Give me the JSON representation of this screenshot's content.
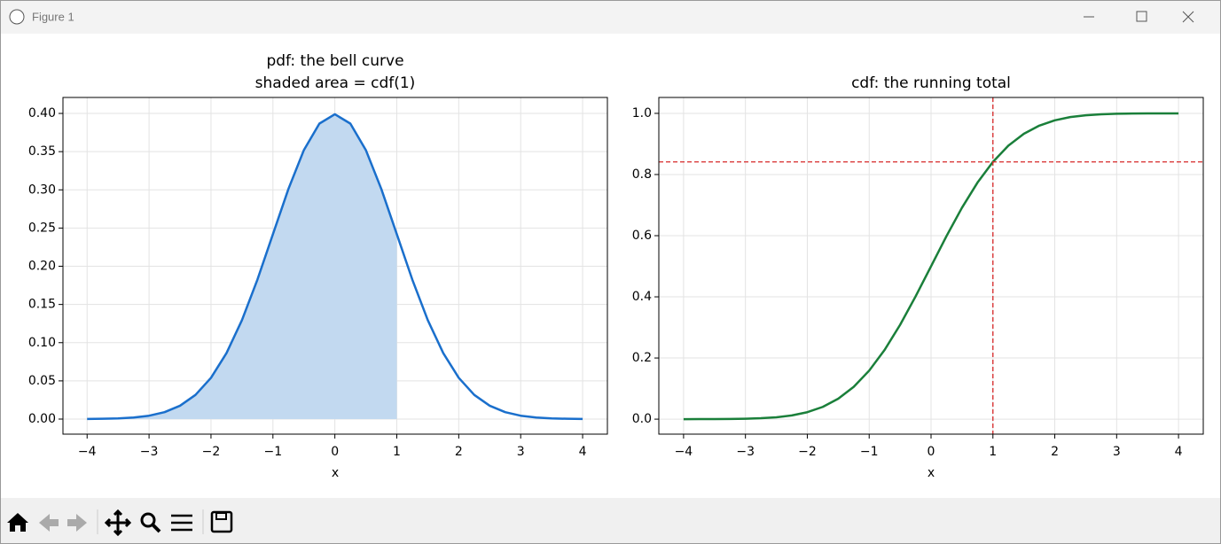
{
  "window": {
    "title": "Figure 1"
  },
  "chart_data": [
    {
      "type": "line",
      "title": "pdf: the bell curve",
      "subtitle": "shaded area = cdf(1)",
      "x_label": "x",
      "x": [
        -4,
        -3.75,
        -3.5,
        -3.25,
        -3,
        -2.75,
        -2.5,
        -2.25,
        -2,
        -1.75,
        -1.5,
        -1.25,
        -1,
        -0.75,
        -0.5,
        -0.25,
        0,
        0.25,
        0.5,
        0.75,
        1,
        1.25,
        1.5,
        1.75,
        2,
        2.25,
        2.5,
        2.75,
        3,
        3.25,
        3.5,
        3.75,
        4
      ],
      "series": [
        {
          "color": "#1a6fcc",
          "values": [
            0.0001,
            0.0004,
            0.0009,
            0.002,
            0.0044,
            0.0091,
            0.0175,
            0.0317,
            0.054,
            0.0863,
            0.1295,
            0.1826,
            0.242,
            0.3011,
            0.3521,
            0.3867,
            0.3989,
            0.3867,
            0.3521,
            0.3011,
            0.242,
            0.1826,
            0.1295,
            0.0863,
            0.054,
            0.0317,
            0.0175,
            0.0091,
            0.0044,
            0.002,
            0.0009,
            0.0004,
            0.0001
          ]
        }
      ],
      "shade_to_x": 1,
      "shade_color": "#c2d9f0",
      "xlim": [
        -4.39,
        4.4
      ],
      "ylim": [
        -0.0197,
        0.4209
      ],
      "xticks": [
        {
          "value": -4,
          "label": "−4"
        },
        {
          "value": -3,
          "label": "−3"
        },
        {
          "value": -2,
          "label": "−2"
        },
        {
          "value": -1,
          "label": "−1"
        },
        0,
        1,
        2,
        3,
        4
      ],
      "yticks": [
        {
          "value": 0,
          "label": "0.00"
        },
        0.05,
        {
          "value": 0.1,
          "label": "0.10"
        },
        0.15,
        {
          "value": 0.2,
          "label": "0.20"
        },
        0.25,
        {
          "value": 0.3,
          "label": "0.30"
        },
        0.35,
        {
          "value": 0.4,
          "label": "0.40"
        }
      ],
      "grid": true
    },
    {
      "type": "line",
      "title": "cdf: the running total",
      "x_label": "x",
      "x": [
        -4,
        -3.75,
        -3.5,
        -3.25,
        -3,
        -2.75,
        -2.5,
        -2.25,
        -2,
        -1.75,
        -1.5,
        -1.25,
        -1,
        -0.75,
        -0.5,
        -0.25,
        0,
        0.25,
        0.5,
        0.75,
        1,
        1.25,
        1.5,
        1.75,
        2,
        2.25,
        2.5,
        2.75,
        3,
        3.25,
        3.5,
        3.75,
        4
      ],
      "series": [
        {
          "color": "#1a7f3a",
          "values": [
            0,
            0.0001,
            0.0002,
            0.0006,
            0.0013,
            0.003,
            0.0062,
            0.0122,
            0.0228,
            0.0401,
            0.0668,
            0.1056,
            0.1587,
            0.2266,
            0.3085,
            0.4013,
            0.5,
            0.5987,
            0.6915,
            0.7734,
            0.8413,
            0.8944,
            0.9332,
            0.9599,
            0.9772,
            0.9878,
            0.9938,
            0.997,
            0.9987,
            0.9994,
            0.9998,
            0.9999,
            1
          ]
        }
      ],
      "reference_lines": {
        "x": 1,
        "y": 0.8413,
        "color": "#d62728"
      },
      "xlim": [
        -4.4,
        4.4
      ],
      "ylim": [
        -0.049,
        1.052
      ],
      "xticks": [
        {
          "value": -4,
          "label": "−4"
        },
        {
          "value": -3,
          "label": "−3"
        },
        {
          "value": -2,
          "label": "−2"
        },
        {
          "value": -1,
          "label": "−1"
        },
        0,
        1,
        2,
        3,
        4
      ],
      "yticks": [
        {
          "value": 0,
          "label": "0.0"
        },
        0.2,
        0.4,
        0.6,
        0.8,
        {
          "value": 1,
          "label": "1.0"
        }
      ],
      "grid": true
    }
  ]
}
